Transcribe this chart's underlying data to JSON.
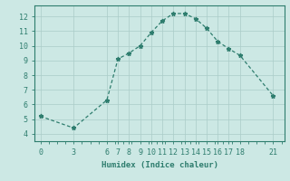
{
  "x": [
    0,
    3,
    6,
    7,
    8,
    9,
    10,
    11,
    12,
    13,
    14,
    15,
    16,
    17,
    18,
    21
  ],
  "y": [
    5.2,
    4.4,
    6.3,
    9.1,
    9.5,
    10.0,
    10.9,
    11.7,
    12.2,
    12.2,
    11.85,
    11.2,
    10.3,
    9.8,
    9.35,
    6.6
  ],
  "line_color": "#2e7d6e",
  "bg_color": "#cce8e4",
  "grid_color": "#aaccc8",
  "xlabel": "Humidex (Indice chaleur)",
  "xlim": [
    -0.5,
    22
  ],
  "ylim": [
    3.5,
    12.75
  ],
  "xticks": [
    0,
    3,
    6,
    7,
    8,
    9,
    10,
    11,
    12,
    13,
    14,
    15,
    16,
    17,
    18,
    21
  ],
  "yticks": [
    4,
    5,
    6,
    7,
    8,
    9,
    10,
    11,
    12
  ],
  "xlabel_fontsize": 6.5,
  "tick_fontsize": 6.0,
  "marker": "*",
  "marker_size": 3.5,
  "line_width": 0.9
}
